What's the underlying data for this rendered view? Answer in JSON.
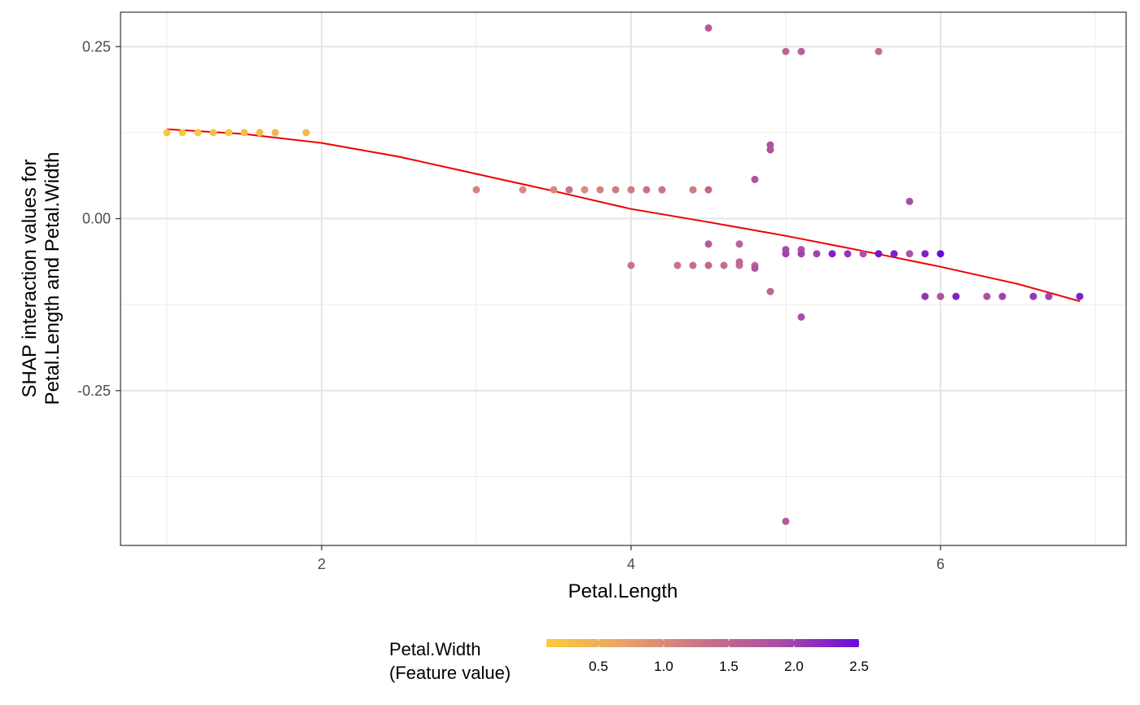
{
  "chart_data": {
    "type": "scatter",
    "title": "",
    "xlabel": "Petal.Length",
    "ylabel_lines": [
      "SHAP interaction values for",
      "Petal.Length and Petal.Width"
    ],
    "xlim": [
      0.7,
      7.2
    ],
    "ylim": [
      -0.475,
      0.3
    ],
    "x_ticks": [
      2,
      4,
      6
    ],
    "x_tick_labels": [
      "2",
      "4",
      "6"
    ],
    "y_ticks": [
      0.25,
      0.0,
      -0.25
    ],
    "y_tick_labels": [
      "0.25",
      "0.00",
      "-0.25"
    ],
    "grid": true,
    "legend": {
      "position": "bottom",
      "title_lines": [
        "Petal.Width",
        "(Feature value)"
      ],
      "range": [
        0.1,
        2.5
      ],
      "ticks": [
        0.5,
        1.0,
        1.5,
        2.0,
        2.5
      ],
      "tick_labels": [
        "0.5",
        "1.0",
        "1.5",
        "2.0",
        "2.5"
      ],
      "colors": [
        "#FDCB3A",
        "#E8A26A",
        "#C97389",
        "#A94DA4",
        "#6A0ADB"
      ]
    },
    "points": [
      {
        "x": 1.0,
        "y": 0.125,
        "c": 0.2
      },
      {
        "x": 1.1,
        "y": 0.125,
        "c": 0.1
      },
      {
        "x": 1.2,
        "y": 0.125,
        "c": 0.2
      },
      {
        "x": 1.3,
        "y": 0.125,
        "c": 0.2
      },
      {
        "x": 1.4,
        "y": 0.125,
        "c": 0.2
      },
      {
        "x": 1.5,
        "y": 0.125,
        "c": 0.3
      },
      {
        "x": 1.6,
        "y": 0.125,
        "c": 0.3
      },
      {
        "x": 1.7,
        "y": 0.125,
        "c": 0.4
      },
      {
        "x": 1.9,
        "y": 0.125,
        "c": 0.4
      },
      {
        "x": 3.0,
        "y": 0.042,
        "c": 1.1
      },
      {
        "x": 3.3,
        "y": 0.042,
        "c": 1.0
      },
      {
        "x": 3.5,
        "y": 0.042,
        "c": 1.0
      },
      {
        "x": 3.6,
        "y": 0.042,
        "c": 1.3
      },
      {
        "x": 3.7,
        "y": 0.042,
        "c": 1.0
      },
      {
        "x": 3.8,
        "y": 0.042,
        "c": 1.1
      },
      {
        "x": 3.9,
        "y": 0.042,
        "c": 1.2
      },
      {
        "x": 4.0,
        "y": 0.042,
        "c": 1.2
      },
      {
        "x": 4.1,
        "y": 0.042,
        "c": 1.3
      },
      {
        "x": 4.2,
        "y": 0.042,
        "c": 1.3
      },
      {
        "x": 4.4,
        "y": 0.042,
        "c": 1.2
      },
      {
        "x": 4.5,
        "y": 0.042,
        "c": 1.5
      },
      {
        "x": 4.0,
        "y": -0.068,
        "c": 1.3
      },
      {
        "x": 4.3,
        "y": -0.068,
        "c": 1.3
      },
      {
        "x": 4.4,
        "y": -0.068,
        "c": 1.4
      },
      {
        "x": 4.5,
        "y": -0.068,
        "c": 1.5
      },
      {
        "x": 4.6,
        "y": -0.068,
        "c": 1.4
      },
      {
        "x": 4.7,
        "y": -0.068,
        "c": 1.4
      },
      {
        "x": 4.7,
        "y": -0.063,
        "c": 1.5
      },
      {
        "x": 4.8,
        "y": -0.068,
        "c": 1.4
      },
      {
        "x": 4.8,
        "y": -0.072,
        "c": 1.8
      },
      {
        "x": 4.5,
        "y": -0.037,
        "c": 1.7
      },
      {
        "x": 4.7,
        "y": -0.037,
        "c": 1.6
      },
      {
        "x": 4.9,
        "y": -0.106,
        "c": 1.5
      },
      {
        "x": 5.1,
        "y": -0.143,
        "c": 1.9
      },
      {
        "x": 5.0,
        "y": -0.44,
        "c": 1.7
      },
      {
        "x": 4.5,
        "y": 0.277,
        "c": 1.7
      },
      {
        "x": 5.0,
        "y": 0.243,
        "c": 1.5
      },
      {
        "x": 5.1,
        "y": 0.243,
        "c": 1.6
      },
      {
        "x": 5.6,
        "y": 0.243,
        "c": 1.4
      },
      {
        "x": 4.9,
        "y": 0.107,
        "c": 1.8
      },
      {
        "x": 4.9,
        "y": 0.1,
        "c": 1.8
      },
      {
        "x": 4.8,
        "y": 0.057,
        "c": 1.8
      },
      {
        "x": 5.8,
        "y": 0.025,
        "c": 1.9
      },
      {
        "x": 5.0,
        "y": -0.045,
        "c": 1.9
      },
      {
        "x": 5.0,
        "y": -0.051,
        "c": 2.0
      },
      {
        "x": 5.1,
        "y": -0.045,
        "c": 1.8
      },
      {
        "x": 5.1,
        "y": -0.051,
        "c": 2.0
      },
      {
        "x": 5.2,
        "y": -0.051,
        "c": 2.0
      },
      {
        "x": 5.3,
        "y": -0.051,
        "c": 2.3
      },
      {
        "x": 5.4,
        "y": -0.051,
        "c": 2.1
      },
      {
        "x": 5.5,
        "y": -0.051,
        "c": 1.8
      },
      {
        "x": 5.6,
        "y": -0.051,
        "c": 2.4
      },
      {
        "x": 5.7,
        "y": -0.051,
        "c": 2.3
      },
      {
        "x": 5.8,
        "y": -0.051,
        "c": 1.8
      },
      {
        "x": 5.9,
        "y": -0.051,
        "c": 2.3
      },
      {
        "x": 6.0,
        "y": -0.051,
        "c": 2.5
      },
      {
        "x": 5.9,
        "y": -0.113,
        "c": 2.1
      },
      {
        "x": 6.0,
        "y": -0.113,
        "c": 1.8
      },
      {
        "x": 6.1,
        "y": -0.113,
        "c": 2.3
      },
      {
        "x": 6.3,
        "y": -0.113,
        "c": 1.8
      },
      {
        "x": 6.4,
        "y": -0.113,
        "c": 2.0
      },
      {
        "x": 6.6,
        "y": -0.113,
        "c": 2.1
      },
      {
        "x": 6.7,
        "y": -0.113,
        "c": 2.0
      },
      {
        "x": 6.9,
        "y": -0.113,
        "c": 2.3
      }
    ],
    "smooth_line": {
      "color": "#EE0000",
      "x": [
        1.0,
        1.5,
        2.0,
        2.5,
        3.0,
        3.5,
        4.0,
        4.5,
        5.0,
        5.5,
        6.0,
        6.5,
        6.9
      ],
      "y": [
        0.13,
        0.123,
        0.11,
        0.09,
        0.065,
        0.04,
        0.014,
        -0.005,
        -0.025,
        -0.047,
        -0.07,
        -0.095,
        -0.12
      ]
    }
  }
}
